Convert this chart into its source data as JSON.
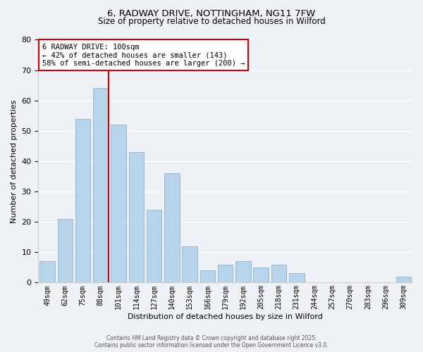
{
  "title": "6, RADWAY DRIVE, NOTTINGHAM, NG11 7FW",
  "subtitle": "Size of property relative to detached houses in Wilford",
  "xlabel": "Distribution of detached houses by size in Wilford",
  "ylabel": "Number of detached properties",
  "categories": [
    "49sqm",
    "62sqm",
    "75sqm",
    "88sqm",
    "101sqm",
    "114sqm",
    "127sqm",
    "140sqm",
    "153sqm",
    "166sqm",
    "179sqm",
    "192sqm",
    "205sqm",
    "218sqm",
    "231sqm",
    "244sqm",
    "257sqm",
    "270sqm",
    "283sqm",
    "296sqm",
    "309sqm"
  ],
  "values": [
    7,
    21,
    54,
    64,
    52,
    43,
    24,
    36,
    12,
    4,
    6,
    7,
    5,
    6,
    3,
    0,
    0,
    0,
    0,
    0,
    2
  ],
  "bar_color": "#b8d4ea",
  "bar_edge_color": "#96b8d8",
  "highlight_line_color": "#cc0000",
  "ylim": [
    0,
    80
  ],
  "yticks": [
    0,
    10,
    20,
    30,
    40,
    50,
    60,
    70,
    80
  ],
  "annotation_title": "6 RADWAY DRIVE: 100sqm",
  "annotation_line1": "← 42% of detached houses are smaller (143)",
  "annotation_line2": "58% of semi-detached houses are larger (200) →",
  "annotation_box_color": "#ffffff",
  "annotation_box_edge": "#cc0000",
  "background_color": "#eef2f7",
  "grid_color": "#ffffff",
  "footer1": "Contains HM Land Registry data © Crown copyright and database right 2025.",
  "footer2": "Contains public sector information licensed under the Open Government Licence v3.0."
}
